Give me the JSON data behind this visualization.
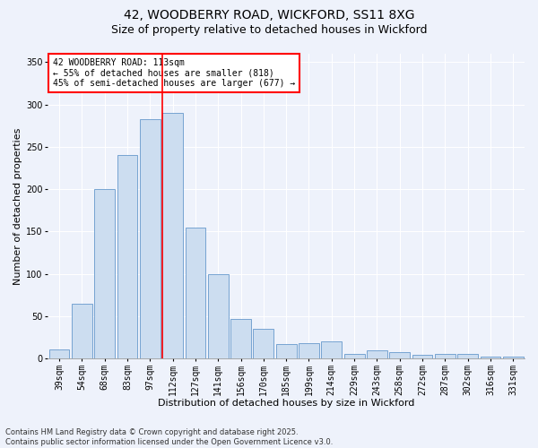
{
  "title_line1": "42, WOODBERRY ROAD, WICKFORD, SS11 8XG",
  "title_line2": "Size of property relative to detached houses in Wickford",
  "xlabel": "Distribution of detached houses by size in Wickford",
  "ylabel": "Number of detached properties",
  "categories": [
    "39sqm",
    "54sqm",
    "68sqm",
    "83sqm",
    "97sqm",
    "112sqm",
    "127sqm",
    "141sqm",
    "156sqm",
    "170sqm",
    "185sqm",
    "199sqm",
    "214sqm",
    "229sqm",
    "243sqm",
    "258sqm",
    "272sqm",
    "287sqm",
    "302sqm",
    "316sqm",
    "331sqm"
  ],
  "values": [
    11,
    65,
    200,
    240,
    283,
    290,
    155,
    100,
    47,
    35,
    17,
    18,
    20,
    5,
    10,
    7,
    4,
    5,
    5,
    2,
    2
  ],
  "bar_color": "#ccddf0",
  "bar_edge_color": "#6699cc",
  "annotation_line1": "42 WOODBERRY ROAD: 113sqm",
  "annotation_line2": "← 55% of detached houses are smaller (818)",
  "annotation_line3": "45% of semi-detached houses are larger (677) →",
  "annotation_box_color": "white",
  "annotation_box_edge_color": "red",
  "redline_color": "red",
  "ylim": [
    0,
    360
  ],
  "yticks": [
    0,
    50,
    100,
    150,
    200,
    250,
    300,
    350
  ],
  "background_color": "#eef2fb",
  "footer_line1": "Contains HM Land Registry data © Crown copyright and database right 2025.",
  "footer_line2": "Contains public sector information licensed under the Open Government Licence v3.0.",
  "title_fontsize": 10,
  "subtitle_fontsize": 9,
  "axis_label_fontsize": 8,
  "tick_fontsize": 7,
  "annotation_fontsize": 7,
  "footer_fontsize": 6
}
